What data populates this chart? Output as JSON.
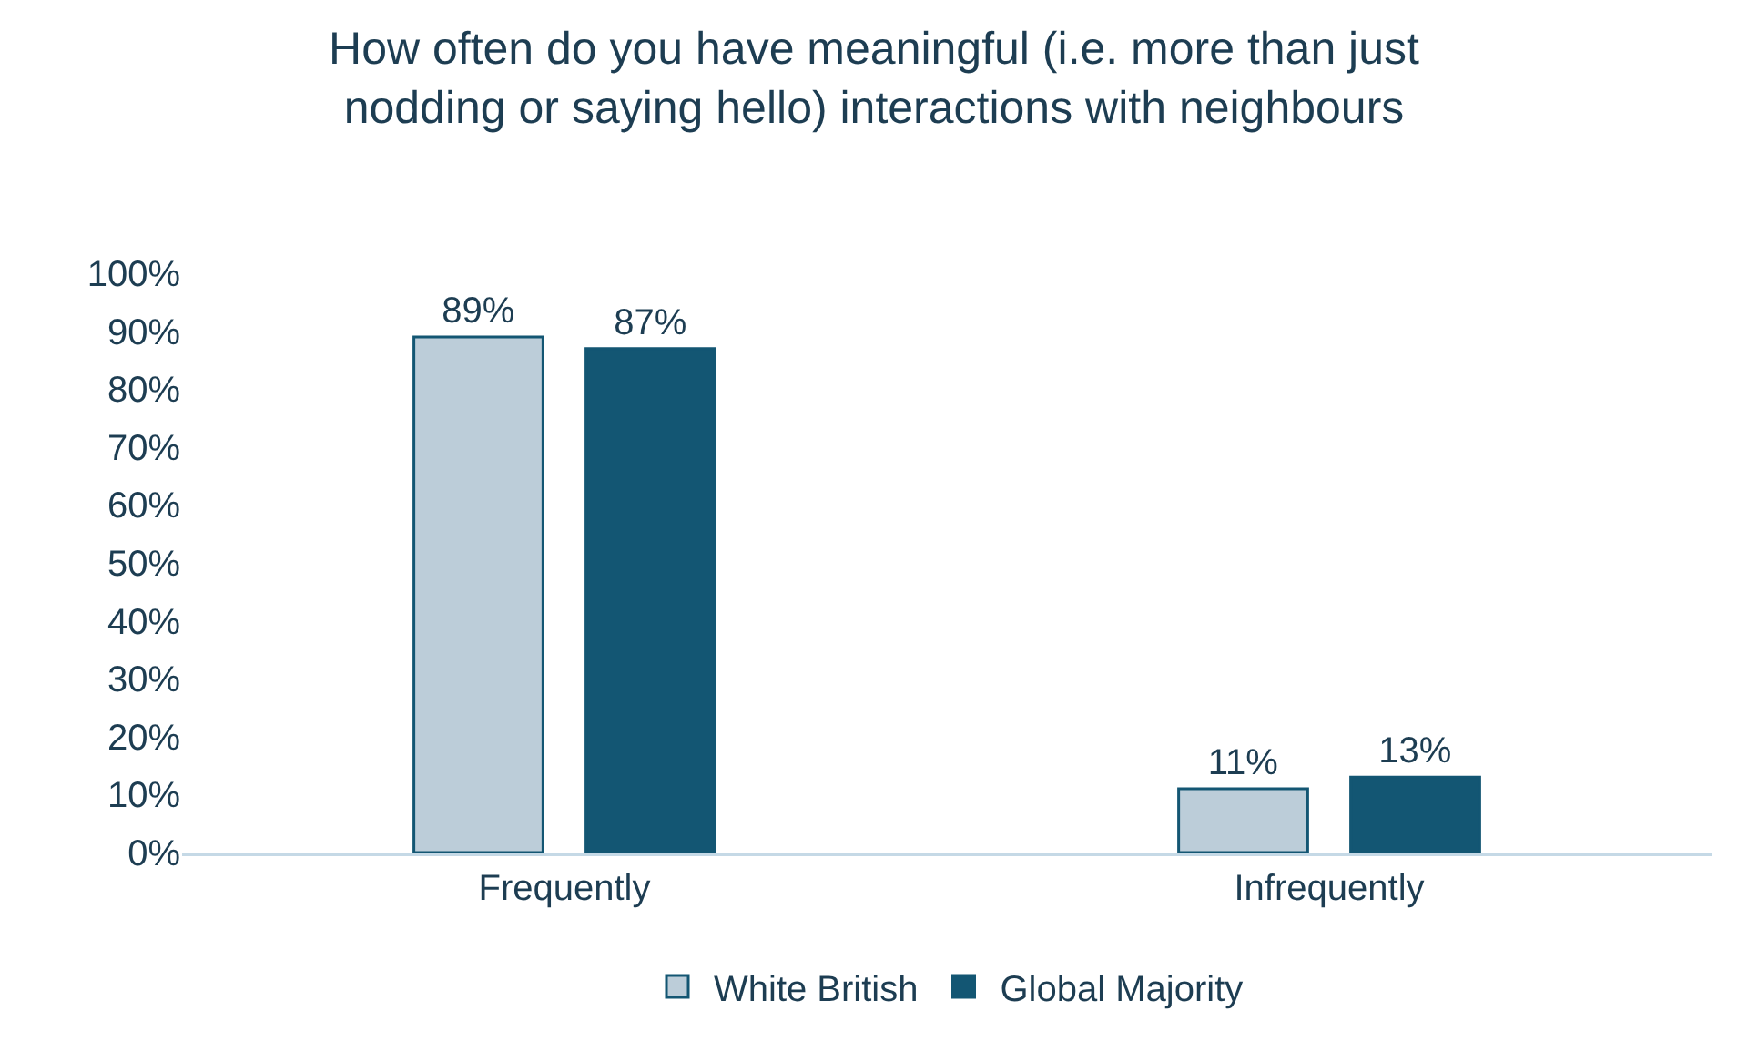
{
  "chart_data": {
    "type": "bar",
    "title": "How often do you have meaningful (i.e. more than just\nnodding or saying hello) interactions with neighbours",
    "categories": [
      "Frequently",
      "Infrequently"
    ],
    "series": [
      {
        "name": "White British",
        "color": "#bccdd9",
        "values": [
          89,
          11
        ],
        "value_labels": [
          "89%",
          "11%"
        ]
      },
      {
        "name": "Global Majority",
        "color": "#135673",
        "values": [
          87,
          13
        ],
        "value_labels": [
          "87%",
          "13%"
        ]
      }
    ],
    "ylim": [
      0,
      100
    ],
    "yticks": [
      {
        "value": 0,
        "label": "0%"
      },
      {
        "value": 10,
        "label": "10%"
      },
      {
        "value": 20,
        "label": "20%"
      },
      {
        "value": 30,
        "label": "30%"
      },
      {
        "value": 40,
        "label": "40%"
      },
      {
        "value": 50,
        "label": "50%"
      },
      {
        "value": 60,
        "label": "60%"
      },
      {
        "value": 70,
        "label": "70%"
      },
      {
        "value": 80,
        "label": "80%"
      },
      {
        "value": 90,
        "label": "90%"
      },
      {
        "value": 100,
        "label": "100%"
      }
    ],
    "grid": false,
    "legend": "bottom"
  }
}
